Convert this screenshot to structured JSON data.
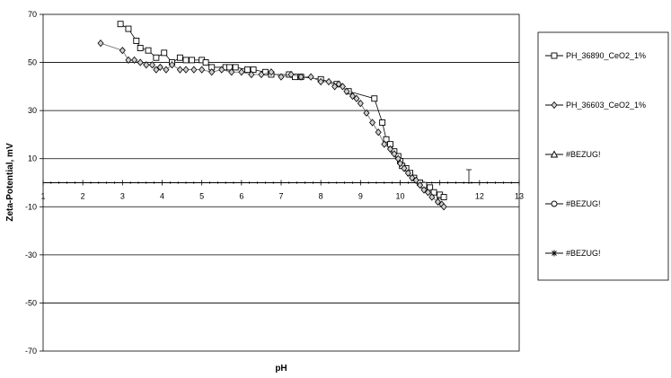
{
  "chart_data": {
    "type": "scatter",
    "xlabel": "pH",
    "ylabel": "Zeta-Potential, mV",
    "xlim": [
      1,
      13
    ],
    "ylim": [
      -70,
      70
    ],
    "x_ticks": [
      "1",
      "2",
      "3",
      "4",
      "5",
      "6",
      "7",
      "8",
      "9",
      "10",
      "11",
      "12",
      "13"
    ],
    "y_ticks": [
      "70",
      "50",
      "30",
      "10",
      "-10",
      "-30",
      "-50",
      "-70"
    ],
    "y_tick_values": [
      70,
      50,
      30,
      10,
      -10,
      -30,
      -50,
      -70
    ],
    "grid": "horizontal",
    "legend_position": "right",
    "series": [
      {
        "name": "PH_36890_CeO2_1%",
        "marker": "square",
        "x": [
          2.95,
          3.15,
          3.35,
          3.45,
          3.65,
          3.85,
          4.05,
          4.25,
          4.45,
          4.6,
          4.75,
          5.0,
          5.1,
          5.25,
          5.6,
          5.7,
          5.85,
          6.15,
          6.3,
          6.6,
          6.75,
          7.2,
          7.35,
          7.5,
          8.0,
          8.4,
          8.7,
          9.35,
          9.55,
          9.65,
          9.75,
          9.85,
          9.95,
          10.0,
          10.05,
          10.15,
          10.25,
          10.35,
          10.5,
          10.6,
          10.75,
          10.85,
          11.0,
          11.1
        ],
        "y": [
          66,
          64,
          59,
          56,
          55,
          52,
          54,
          50,
          52,
          51,
          51,
          51,
          50,
          48,
          48,
          48,
          48,
          47,
          47,
          46,
          45,
          45,
          44,
          44,
          43,
          41,
          38,
          35,
          25,
          18,
          16,
          13,
          11,
          9,
          7,
          6,
          4,
          2,
          0,
          -1,
          -2,
          -4,
          -5,
          -6
        ],
        "color": "#000000"
      },
      {
        "name": "PH_36603_CeO2_1%",
        "marker": "diamond",
        "x": [
          2.45,
          3.0,
          3.15,
          3.3,
          3.45,
          3.6,
          3.75,
          3.85,
          3.95,
          4.1,
          4.25,
          4.45,
          4.6,
          4.8,
          5.0,
          5.25,
          5.5,
          5.75,
          6.0,
          6.25,
          6.5,
          6.75,
          7.0,
          7.25,
          7.5,
          7.75,
          8.0,
          8.2,
          8.35,
          8.45,
          8.55,
          8.65,
          8.8,
          8.9,
          9.0,
          9.15,
          9.3,
          9.45,
          9.6,
          9.75,
          9.85,
          9.95,
          10.0,
          10.1,
          10.2,
          10.3,
          10.4,
          10.5,
          10.6,
          10.7,
          10.8,
          10.95,
          11.05,
          11.1
        ],
        "y": [
          58,
          55,
          51,
          51,
          50,
          49,
          49,
          47,
          48,
          47,
          49,
          47,
          47,
          47,
          47,
          46,
          47,
          46,
          46,
          45,
          45,
          46,
          44,
          45,
          44,
          44,
          42,
          42,
          40,
          41,
          40,
          38,
          36,
          35,
          33,
          29,
          25,
          21,
          16,
          14,
          12,
          10,
          8,
          6,
          4,
          2,
          1,
          -1,
          -3,
          -4,
          -6,
          -8,
          -9,
          -10
        ],
        "color": "#666666"
      },
      {
        "name": "#BEZUG!",
        "marker": "triangle",
        "x": [],
        "y": []
      },
      {
        "name": "#BEZUG!",
        "marker": "circle",
        "x": [],
        "y": []
      },
      {
        "name": "#BEZUG!",
        "marker": "star",
        "x": [],
        "y": []
      }
    ]
  }
}
